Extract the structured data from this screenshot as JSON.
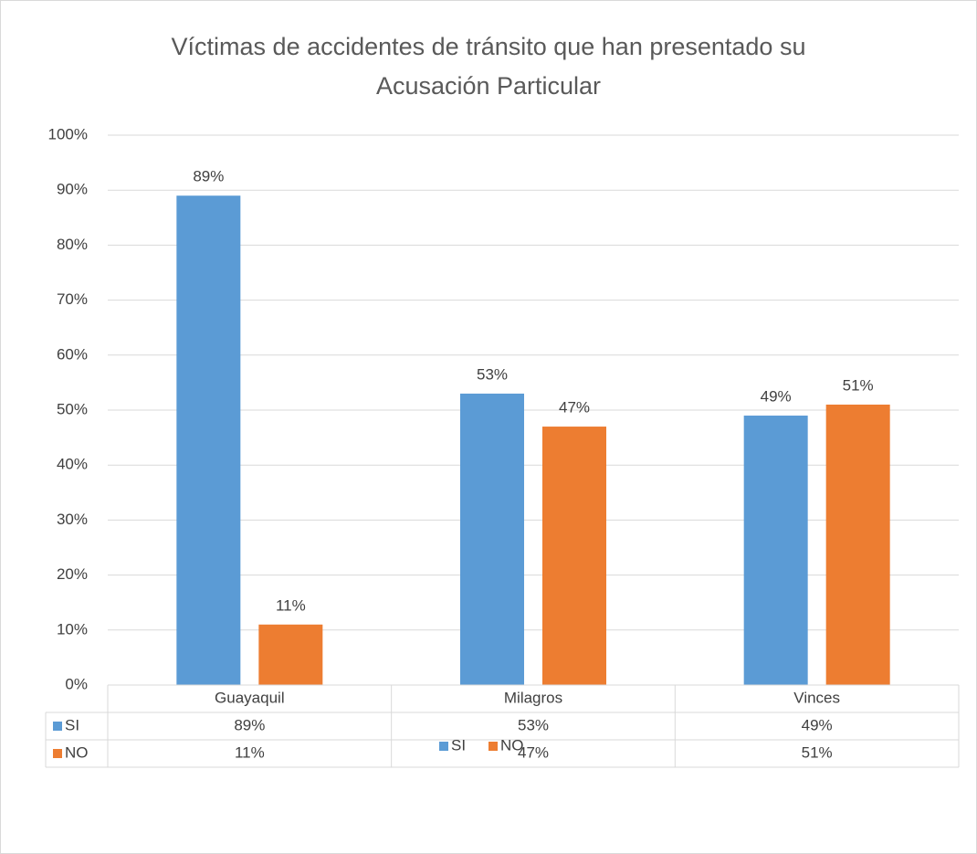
{
  "chart_data": {
    "type": "bar",
    "title": "Víctimas de accidentes de tránsito que han presentado su Acusación Particular",
    "categories": [
      "Guayaquil",
      "Milagros",
      "Vinces"
    ],
    "series": [
      {
        "name": "SI",
        "color": "#5b9bd5",
        "values": [
          89,
          53,
          49
        ],
        "value_labels": [
          "89%",
          "53%",
          "49%"
        ]
      },
      {
        "name": "NO",
        "color": "#ed7d31",
        "values": [
          11,
          47,
          51
        ],
        "value_labels": [
          "11%",
          "47%",
          "51%"
        ]
      }
    ],
    "ylim": [
      0,
      100
    ],
    "yticks": [
      {
        "value": 0,
        "label": "0%"
      },
      {
        "value": 10,
        "label": "10%"
      },
      {
        "value": 20,
        "label": "20%"
      },
      {
        "value": 30,
        "label": "30%"
      },
      {
        "value": 40,
        "label": "40%"
      },
      {
        "value": 50,
        "label": "50%"
      },
      {
        "value": 60,
        "label": "60%"
      },
      {
        "value": 70,
        "label": "70%"
      },
      {
        "value": 80,
        "label": "80%"
      },
      {
        "value": 90,
        "label": "90%"
      },
      {
        "value": 100,
        "label": "100%"
      }
    ],
    "grid": true,
    "legend": "bottom"
  }
}
